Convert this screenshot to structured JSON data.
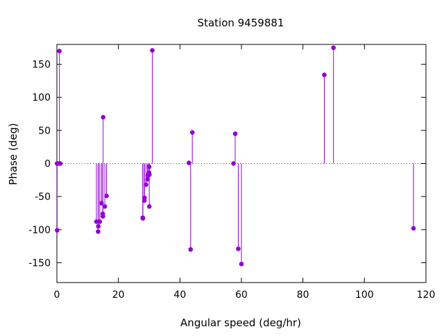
{
  "chart_data": {
    "type": "scatter",
    "title": "Station 9459881",
    "xlabel": "Angular speed (deg/hr)",
    "ylabel": "Phase (deg)",
    "xlim": [
      0,
      120
    ],
    "ylim": [
      -180,
      180
    ],
    "xticks": [
      0,
      20,
      40,
      60,
      80,
      100,
      120
    ],
    "yticks": [
      -150,
      -100,
      -50,
      0,
      50,
      100,
      150
    ],
    "style": "impulses-with-points",
    "grid": false,
    "legend": "none",
    "zero_line": "dotted",
    "colors": {
      "series": "#9400d3"
    },
    "points": [
      {
        "x": 0.04,
        "y": 0
      },
      {
        "x": 0.08,
        "y": -101
      },
      {
        "x": 0.54,
        "y": 0
      },
      {
        "x": 0.82,
        "y": 170
      },
      {
        "x": 1.1,
        "y": 0
      },
      {
        "x": 12.85,
        "y": -88
      },
      {
        "x": 13.4,
        "y": -103
      },
      {
        "x": 13.47,
        "y": -95
      },
      {
        "x": 13.94,
        "y": -88
      },
      {
        "x": 14.5,
        "y": -60
      },
      {
        "x": 14.92,
        "y": -76
      },
      {
        "x": 14.96,
        "y": -80
      },
      {
        "x": 15.04,
        "y": 70
      },
      {
        "x": 15.59,
        "y": -65
      },
      {
        "x": 16.14,
        "y": -49
      },
      {
        "x": 27.9,
        "y": -82
      },
      {
        "x": 27.97,
        "y": -83
      },
      {
        "x": 28.44,
        "y": -56
      },
      {
        "x": 28.51,
        "y": -52
      },
      {
        "x": 28.99,
        "y": -32
      },
      {
        "x": 29.46,
        "y": -24
      },
      {
        "x": 29.53,
        "y": -18
      },
      {
        "x": 29.96,
        "y": -14
      },
      {
        "x": 30.0,
        "y": -5
      },
      {
        "x": 30.04,
        "y": -65
      },
      {
        "x": 30.08,
        "y": -17
      },
      {
        "x": 31.02,
        "y": 171
      },
      {
        "x": 42.93,
        "y": 1
      },
      {
        "x": 43.48,
        "y": -130
      },
      {
        "x": 44.03,
        "y": 47
      },
      {
        "x": 57.42,
        "y": 0
      },
      {
        "x": 57.97,
        "y": 45
      },
      {
        "x": 58.98,
        "y": -129
      },
      {
        "x": 60.0,
        "y": -152
      },
      {
        "x": 86.95,
        "y": 134
      },
      {
        "x": 89.93,
        "y": 175
      },
      {
        "x": 115.94,
        "y": -98
      }
    ]
  }
}
